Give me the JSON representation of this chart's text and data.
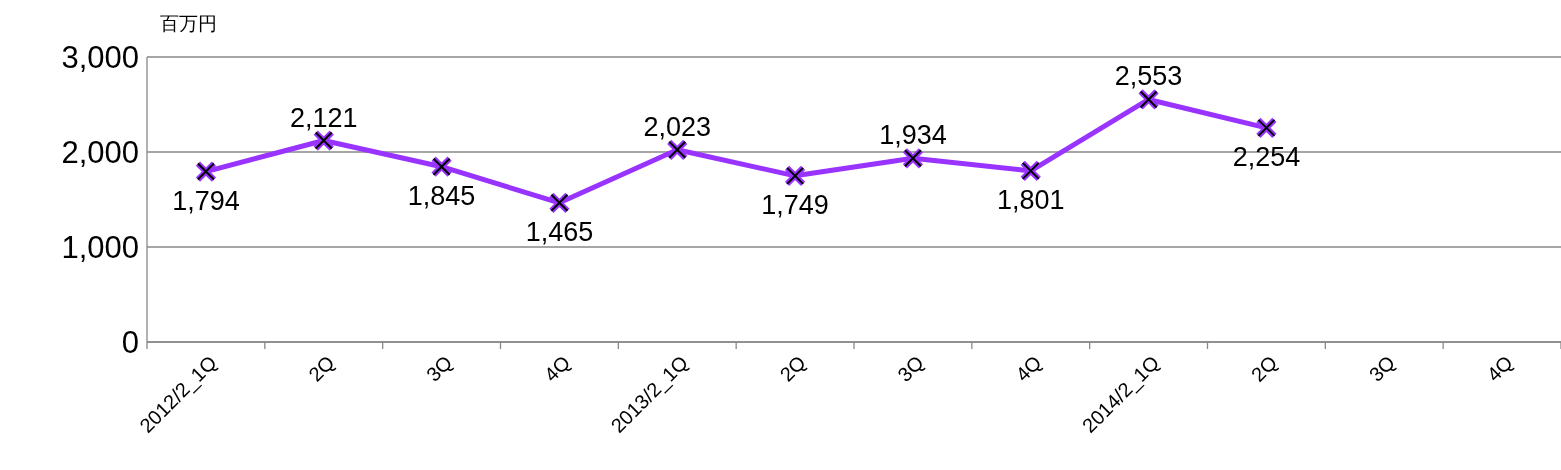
{
  "chart_data": {
    "type": "line",
    "ylabel": "百万円",
    "categories": [
      "2012/2_1Q",
      "2Q",
      "3Q",
      "4Q",
      "2013/2_1Q",
      "2Q",
      "3Q",
      "4Q",
      "2014/2_1Q",
      "2Q",
      "3Q",
      "4Q"
    ],
    "series": [
      {
        "color": "#9933ff",
        "values": [
          1794,
          2121,
          1845,
          1465,
          2023,
          1749,
          1934,
          1801,
          2553,
          2254,
          null,
          null
        ],
        "value_labels": [
          "1,794",
          "2,121",
          "1,845",
          "1,465",
          "2,023",
          "1,749",
          "1,934",
          "1,801",
          "2,553",
          "2,254",
          null,
          null
        ]
      }
    ],
    "ylim": [
      0,
      3000
    ],
    "yticks": [
      {
        "value": 0,
        "label": "0"
      },
      {
        "value": 1000,
        "label": "1,000"
      },
      {
        "value": 2000,
        "label": "2,000"
      },
      {
        "value": 3000,
        "label": "3,000"
      }
    ],
    "grid": "y",
    "marker": "cross",
    "line_style": "solid"
  }
}
